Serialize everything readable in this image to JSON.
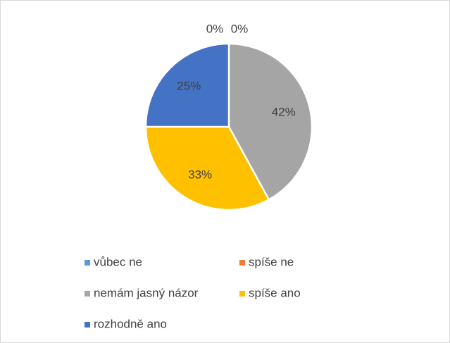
{
  "chart_data": {
    "type": "pie",
    "categories": [
      "vůbec ne",
      "spíše ne",
      "nemám jasný názor",
      "spíše ano",
      "rozhodně ano"
    ],
    "values": [
      0,
      0,
      42,
      33,
      25
    ],
    "value_labels": [
      "0%",
      "0%",
      "42%",
      "33%",
      "25%"
    ],
    "colors": [
      "#5B9BD5",
      "#ED7D31",
      "#A5A5A5",
      "#FFC000",
      "#4472C4"
    ],
    "legend": "bottom"
  }
}
